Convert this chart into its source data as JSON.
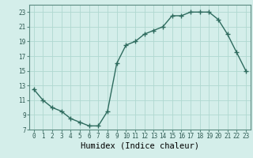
{
  "x": [
    0,
    1,
    2,
    3,
    4,
    5,
    6,
    7,
    8,
    9,
    10,
    11,
    12,
    13,
    14,
    15,
    16,
    17,
    18,
    19,
    20,
    21,
    22,
    23
  ],
  "y": [
    12.5,
    11.0,
    10.0,
    9.5,
    8.5,
    8.0,
    7.5,
    7.5,
    9.5,
    16.0,
    18.5,
    19.0,
    20.0,
    20.5,
    21.0,
    22.5,
    22.5,
    23.0,
    23.0,
    23.0,
    22.0,
    20.0,
    17.5,
    15.0
  ],
  "line_color": "#2e6b5e",
  "marker": "+",
  "marker_size": 4,
  "bg_color": "#d4eeea",
  "grid_color": "#b0d8d0",
  "xlabel": "Humidex (Indice chaleur)",
  "ylim": [
    7,
    24
  ],
  "xlim": [
    -0.5,
    23.5
  ],
  "yticks": [
    7,
    9,
    11,
    13,
    15,
    17,
    19,
    21,
    23
  ],
  "xticks": [
    0,
    1,
    2,
    3,
    4,
    5,
    6,
    7,
    8,
    9,
    10,
    11,
    12,
    13,
    14,
    15,
    16,
    17,
    18,
    19,
    20,
    21,
    22,
    23
  ],
  "tick_fontsize": 5.5,
  "label_fontsize": 7.5,
  "line_width": 1.0
}
